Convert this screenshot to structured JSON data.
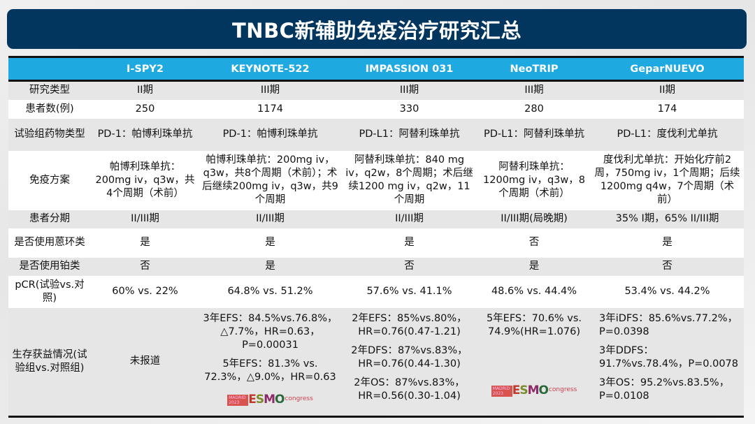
{
  "title": "TNBC新辅助免疫治疗研究汇总",
  "columns": [
    "",
    "I-SPY2",
    "KEYNOTE-522",
    "IMPASSION 031",
    "NeoTRIP",
    "GeparNUEVO"
  ],
  "rows": [
    {
      "label": "研究类型",
      "cells": [
        "II期",
        "III期",
        "III期",
        "III期",
        "II期"
      ]
    },
    {
      "label": "患者数(例)",
      "cells": [
        "250",
        "1174",
        "330",
        "280",
        "174"
      ]
    },
    {
      "label": "试验组药物类型",
      "cells": [
        "PD-1：帕博利珠单抗",
        "PD-1：帕博利珠单抗",
        "PD-L1：阿替利珠单抗",
        "PD-L1：阿替利珠单抗",
        "PD-L1：度伐利尤单抗"
      ]
    },
    {
      "label": "免疫方案",
      "cells": [
        "帕博利珠单抗：200mg iv，q3w，共4个周期（术前）",
        "帕博利珠单抗：200mg iv，q3w，共8个周期（术前）；术后继续200mg iv，q3w，共9个周期",
        "阿替利珠单抗：840 mg iv，q2w，8个周期；术后继续1200 mg iv，q2w，11个周期",
        "阿替利珠单抗：1200mg iv，q3w，8个周期（术前）",
        "度伐利尤单抗：开始化疗前2周，750mg iv，1个周期；后续1200mg q4w，7个周期（术前）"
      ]
    },
    {
      "label": "患者分期",
      "cells": [
        "II/III期",
        "II/III期",
        "II/III期",
        "II/III期(局晚期)",
        "35% I期，65% II/III期"
      ]
    },
    {
      "label": "是否使用蒽环类",
      "cells": [
        "是",
        "是",
        "是",
        "否",
        "是"
      ]
    },
    {
      "label": "是否使用铂类",
      "cells": [
        "否",
        "是",
        "否",
        "是",
        "否"
      ]
    },
    {
      "label": "pCR(试验vs.对照)",
      "cells": [
        "60% vs. 22%",
        "64.8% vs. 51.2%",
        "57.6% vs. 41.1%",
        "48.6% vs. 44.4%",
        "53.4% vs. 44.2%"
      ]
    }
  ],
  "survival": {
    "label": "生存获益情况(试验组vs.对照组)",
    "ispy2": "未报道",
    "keynote": [
      "3年EFS：84.5%vs.76.8%，△7.7%，HR=0.63，P=0.00031",
      "5年EFS：81.3% vs. 72.3%，△9.0%，HR=0.63"
    ],
    "impassion": [
      "2年EFS：85%vs.80%，HR=0.76(0.47-1.21)",
      "2年DFS：87%vs.83%，HR=0.76(0.44-1.30)",
      "2年OS：87%vs.83%，HR=0.56(0.30-1.04)"
    ],
    "neotrip": [
      "5年EFS：70.6% vs. 74.9%(HR=1.076)"
    ],
    "gepar": [
      "3年iDFS：85.6%vs.77.2%，P=0.0398",
      "3年DDFS：91.7%vs.78.4%，P=0.0078",
      "3年OS：95.2%vs.83.5%，P=0.0108"
    ]
  },
  "esmo_logo": {
    "city": "MADRID 2023",
    "name": "ESMO",
    "suffix": "congress"
  }
}
